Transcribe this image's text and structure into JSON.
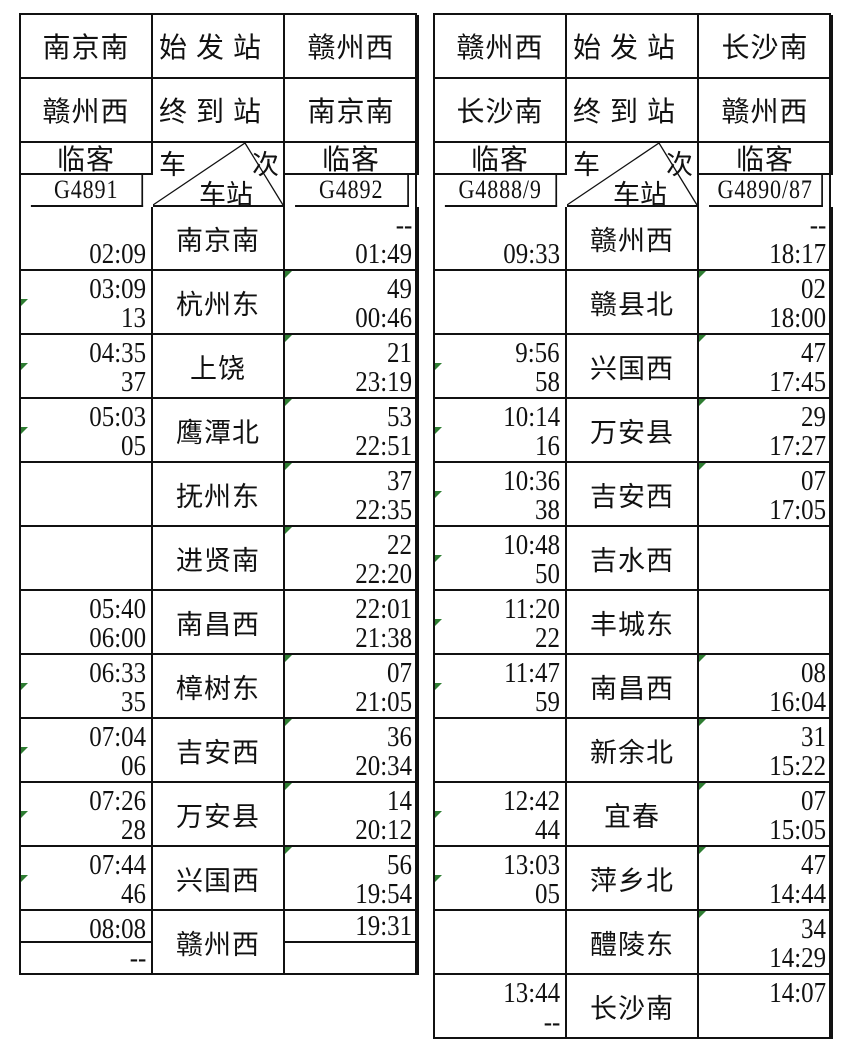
{
  "marker_color": "#2e7d32",
  "tables": [
    {
      "origin": "南京南",
      "origin_label": "始 发 站",
      "origin_return": "赣州西",
      "dest": "赣州西",
      "dest_label": "终 到 站",
      "dest_return": "南京南",
      "type_left": "临客",
      "type_right": "临客",
      "corner_top_left": "车",
      "corner_top_right": "次",
      "corner_bottom": "车站",
      "train_left": "G4891",
      "train_right": "G4892",
      "rows": [
        {
          "station": "南京南",
          "left": [
            "",
            "02:09"
          ],
          "right": [
            "--",
            "01:49"
          ],
          "lm": false,
          "rm": false
        },
        {
          "station": "杭州东",
          "left": [
            "03:09",
            "13"
          ],
          "right": [
            "49",
            "00:46"
          ],
          "lm": true,
          "rm": true
        },
        {
          "station": "上饶",
          "left": [
            "04:35",
            "37"
          ],
          "right": [
            "21",
            "23:19"
          ],
          "lm": true,
          "rm": true
        },
        {
          "station": "鹰潭北",
          "left": [
            "05:03",
            "05"
          ],
          "right": [
            "53",
            "22:51"
          ],
          "lm": true,
          "rm": true
        },
        {
          "station": "抚州东",
          "left": [
            "",
            ""
          ],
          "right": [
            "37",
            "22:35"
          ],
          "lm": false,
          "rm": true
        },
        {
          "station": "进贤南",
          "left": [
            "",
            ""
          ],
          "right": [
            "22",
            "22:20"
          ],
          "lm": false,
          "rm": true
        },
        {
          "station": "南昌西",
          "left": [
            "05:40",
            "06:00"
          ],
          "right": [
            "22:01",
            "21:38"
          ],
          "lm": false,
          "rm": false
        },
        {
          "station": "樟树东",
          "left": [
            "06:33",
            "35"
          ],
          "right": [
            "07",
            "21:05"
          ],
          "lm": true,
          "rm": true
        },
        {
          "station": "吉安西",
          "left": [
            "07:04",
            "06"
          ],
          "right": [
            "36",
            "20:34"
          ],
          "lm": true,
          "rm": true
        },
        {
          "station": "万安县",
          "left": [
            "07:26",
            "28"
          ],
          "right": [
            "14",
            "20:12"
          ],
          "lm": true,
          "rm": true
        },
        {
          "station": "兴国西",
          "left": [
            "07:44",
            "46"
          ],
          "right": [
            "56",
            "19:54"
          ],
          "lm": true,
          "rm": true
        },
        {
          "station": "赣州西",
          "left": [
            "08:08",
            "--"
          ],
          "right": [
            "19:31",
            ""
          ],
          "lm": false,
          "rm": false,
          "split": true
        }
      ]
    },
    {
      "origin": "赣州西",
      "origin_label": "始 发 站",
      "origin_return": "长沙南",
      "dest": "长沙南",
      "dest_label": "终 到 站",
      "dest_return": "赣州西",
      "type_left": "临客",
      "type_right": "临客",
      "corner_top_left": "车",
      "corner_top_right": "次",
      "corner_bottom": "车站",
      "train_left": "G4888/9",
      "train_right": "G4890/87",
      "rows": [
        {
          "station": "赣州西",
          "left": [
            "",
            "09:33"
          ],
          "right": [
            "--",
            "18:17"
          ],
          "lm": false,
          "rm": false
        },
        {
          "station": "赣县北",
          "left": [
            "",
            ""
          ],
          "right": [
            "02",
            "18:00"
          ],
          "lm": false,
          "rm": true
        },
        {
          "station": "兴国西",
          "left": [
            "9:56",
            "58"
          ],
          "right": [
            "47",
            "17:45"
          ],
          "lm": true,
          "rm": true
        },
        {
          "station": "万安县",
          "left": [
            "10:14",
            "16"
          ],
          "right": [
            "29",
            "17:27"
          ],
          "lm": true,
          "rm": true
        },
        {
          "station": "吉安西",
          "left": [
            "10:36",
            "38"
          ],
          "right": [
            "07",
            "17:05"
          ],
          "lm": true,
          "rm": true
        },
        {
          "station": "吉水西",
          "left": [
            "10:48",
            "50"
          ],
          "right": [
            "",
            ""
          ],
          "lm": true,
          "rm": false
        },
        {
          "station": "丰城东",
          "left": [
            "11:20",
            "22"
          ],
          "right": [
            "",
            ""
          ],
          "lm": true,
          "rm": false
        },
        {
          "station": "南昌西",
          "left": [
            "11:47",
            "59"
          ],
          "right": [
            "08",
            "16:04"
          ],
          "lm": true,
          "rm": true
        },
        {
          "station": "新余北",
          "left": [
            "",
            ""
          ],
          "right": [
            "31",
            "15:22"
          ],
          "lm": false,
          "rm": true
        },
        {
          "station": "宜春",
          "left": [
            "12:42",
            "44"
          ],
          "right": [
            "07",
            "15:05"
          ],
          "lm": true,
          "rm": true
        },
        {
          "station": "萍乡北",
          "left": [
            "13:03",
            "05"
          ],
          "right": [
            "47",
            "14:44"
          ],
          "lm": true,
          "rm": true
        },
        {
          "station": "醴陵东",
          "left": [
            "",
            ""
          ],
          "right": [
            "34",
            "14:29"
          ],
          "lm": false,
          "rm": true
        },
        {
          "station": "长沙南",
          "left": [
            "13:44",
            "--"
          ],
          "right": [
            "14:07",
            ""
          ],
          "lm": false,
          "rm": false
        }
      ]
    }
  ]
}
